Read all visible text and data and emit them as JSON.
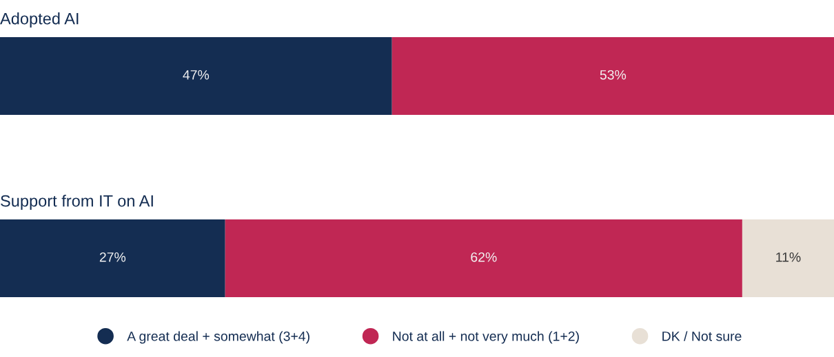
{
  "chart_data": {
    "type": "bar",
    "orientation": "horizontal",
    "stacked": true,
    "categories": [
      "Adopted AI",
      "Support from IT on AI"
    ],
    "series": [
      {
        "name": "A great deal + somewhat (3+4)",
        "color": "#142d52",
        "values": [
          47,
          27
        ],
        "value_labels": [
          "47%",
          "27%"
        ]
      },
      {
        "name": "Not at all + not very much (1+2)",
        "color": "#c02754",
        "values": [
          53,
          62
        ],
        "value_labels": [
          "53%",
          "62%"
        ]
      },
      {
        "name": "DK / Not sure",
        "color": "#e8e0d6",
        "values": [
          null,
          11
        ],
        "value_labels": [
          null,
          "11%"
        ]
      }
    ],
    "xlim": [
      0,
      100
    ],
    "legend": "bottom",
    "marker": "circle"
  }
}
